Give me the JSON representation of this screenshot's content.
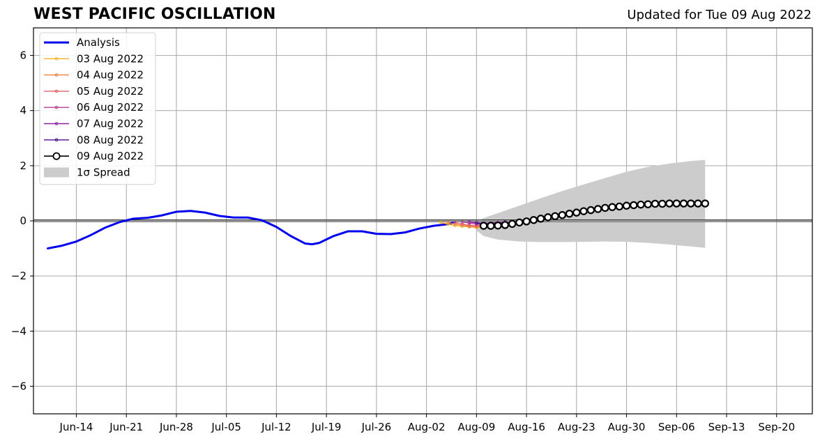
{
  "page": {
    "title": "WEST PACIFIC OSCILLATION",
    "subtitle": "Updated for Tue 09 Aug 2022"
  },
  "chart_data": {
    "type": "line",
    "title": "WEST PACIFIC OSCILLATION",
    "subtitle": "Updated for Tue 09 Aug 2022",
    "xlabel": "",
    "ylabel": "",
    "x_axis": {
      "type": "date",
      "range": [
        "2022-06-08",
        "2022-09-25"
      ],
      "ticks": [
        "2022-06-14",
        "2022-06-21",
        "2022-06-28",
        "2022-07-05",
        "2022-07-12",
        "2022-07-19",
        "2022-07-26",
        "2022-08-02",
        "2022-08-09",
        "2022-08-16",
        "2022-08-23",
        "2022-08-30",
        "2022-09-06",
        "2022-09-13",
        "2022-09-20"
      ],
      "tick_labels": [
        "Jun-14",
        "Jun-21",
        "Jun-28",
        "Jul-05",
        "Jul-12",
        "Jul-19",
        "Jul-26",
        "Aug-02",
        "Aug-09",
        "Aug-16",
        "Aug-23",
        "Aug-30",
        "Sep-06",
        "Sep-13",
        "Sep-20"
      ]
    },
    "y_axis": {
      "range": [
        -7,
        7
      ],
      "ticks": [
        -6,
        -4,
        -2,
        0,
        2,
        4,
        6
      ],
      "tick_labels": [
        "−6",
        "−4",
        "−2",
        "0",
        "2",
        "4",
        "6"
      ]
    },
    "grid": true,
    "legend_position": "top-left",
    "analysis": {
      "name": "Analysis",
      "color": "#0000ee",
      "points": [
        [
          "2022-06-10",
          -1.0
        ],
        [
          "2022-06-12",
          -0.9
        ],
        [
          "2022-06-14",
          -0.75
        ],
        [
          "2022-06-16",
          -0.52
        ],
        [
          "2022-06-18",
          -0.25
        ],
        [
          "2022-06-20",
          -0.05
        ],
        [
          "2022-06-22",
          0.08
        ],
        [
          "2022-06-24",
          0.11
        ],
        [
          "2022-06-26",
          0.2
        ],
        [
          "2022-06-28",
          0.33
        ],
        [
          "2022-06-30",
          0.36
        ],
        [
          "2022-07-02",
          0.3
        ],
        [
          "2022-07-04",
          0.18
        ],
        [
          "2022-07-06",
          0.12
        ],
        [
          "2022-07-08",
          0.12
        ],
        [
          "2022-07-10",
          0.02
        ],
        [
          "2022-07-12",
          -0.22
        ],
        [
          "2022-07-14",
          -0.55
        ],
        [
          "2022-07-16",
          -0.82
        ],
        [
          "2022-07-17",
          -0.85
        ],
        [
          "2022-07-18",
          -0.8
        ],
        [
          "2022-07-20",
          -0.55
        ],
        [
          "2022-07-22",
          -0.38
        ],
        [
          "2022-07-24",
          -0.38
        ],
        [
          "2022-07-26",
          -0.47
        ],
        [
          "2022-07-28",
          -0.48
        ],
        [
          "2022-07-30",
          -0.42
        ],
        [
          "2022-08-01",
          -0.28
        ],
        [
          "2022-08-03",
          -0.18
        ],
        [
          "2022-08-05",
          -0.12
        ],
        [
          "2022-08-06",
          -0.05
        ]
      ]
    },
    "series": [
      {
        "name": "03 Aug 2022",
        "color": "#f5b323",
        "points": [
          [
            "2022-08-04",
            -0.05
          ],
          [
            "2022-08-05",
            -0.12
          ],
          [
            "2022-08-06",
            -0.17
          ],
          [
            "2022-08-07",
            -0.2
          ],
          [
            "2022-08-08",
            -0.22
          ],
          [
            "2022-08-09",
            -0.24
          ],
          [
            "2022-08-10",
            -0.22
          ]
        ]
      },
      {
        "name": "04 Aug 2022",
        "color": "#f07f3f",
        "points": [
          [
            "2022-08-05",
            -0.06
          ],
          [
            "2022-08-06",
            -0.12
          ],
          [
            "2022-08-07",
            -0.16
          ],
          [
            "2022-08-08",
            -0.2
          ],
          [
            "2022-08-09",
            -0.22
          ],
          [
            "2022-08-10",
            -0.2
          ]
        ]
      },
      {
        "name": "05 Aug 2022",
        "color": "#df5f66",
        "points": [
          [
            "2022-08-06",
            -0.06
          ],
          [
            "2022-08-07",
            -0.12
          ],
          [
            "2022-08-08",
            -0.16
          ],
          [
            "2022-08-09",
            -0.18
          ],
          [
            "2022-08-10",
            -0.16
          ],
          [
            "2022-08-11",
            -0.12
          ]
        ]
      },
      {
        "name": "06 Aug 2022",
        "color": "#b73c8f",
        "points": [
          [
            "2022-08-07",
            -0.04
          ],
          [
            "2022-08-08",
            -0.08
          ],
          [
            "2022-08-09",
            -0.12
          ],
          [
            "2022-08-10",
            -0.12
          ],
          [
            "2022-08-11",
            -0.1
          ],
          [
            "2022-08-12",
            -0.08
          ]
        ]
      },
      {
        "name": "07 Aug 2022",
        "color": "#8c1fa6",
        "points": [
          [
            "2022-08-08",
            -0.04
          ],
          [
            "2022-08-09",
            -0.07
          ],
          [
            "2022-08-10",
            -0.09
          ],
          [
            "2022-08-11",
            -0.08
          ],
          [
            "2022-08-12",
            -0.06
          ],
          [
            "2022-08-13",
            -0.04
          ]
        ]
      },
      {
        "name": "08 Aug 2022",
        "color": "#4a0e8f",
        "points": [
          [
            "2022-08-09",
            -0.08
          ],
          [
            "2022-08-10",
            -0.12
          ],
          [
            "2022-08-11",
            -0.12
          ],
          [
            "2022-08-12",
            -0.1
          ],
          [
            "2022-08-13",
            -0.08
          ]
        ]
      },
      {
        "name": "09 Aug 2022",
        "color": "#000000",
        "marker": "open-circle",
        "points": [
          [
            "2022-08-10",
            -0.18
          ],
          [
            "2022-08-11",
            -0.18
          ],
          [
            "2022-08-12",
            -0.17
          ],
          [
            "2022-08-13",
            -0.15
          ],
          [
            "2022-08-14",
            -0.11
          ],
          [
            "2022-08-15",
            -0.06
          ],
          [
            "2022-08-16",
            -0.02
          ],
          [
            "2022-08-17",
            0.03
          ],
          [
            "2022-08-18",
            0.08
          ],
          [
            "2022-08-19",
            0.13
          ],
          [
            "2022-08-20",
            0.17
          ],
          [
            "2022-08-21",
            0.21
          ],
          [
            "2022-08-22",
            0.26
          ],
          [
            "2022-08-23",
            0.3
          ],
          [
            "2022-08-24",
            0.35
          ],
          [
            "2022-08-25",
            0.39
          ],
          [
            "2022-08-26",
            0.43
          ],
          [
            "2022-08-27",
            0.47
          ],
          [
            "2022-08-28",
            0.5
          ],
          [
            "2022-08-29",
            0.52
          ],
          [
            "2022-08-30",
            0.55
          ],
          [
            "2022-08-31",
            0.57
          ],
          [
            "2022-09-01",
            0.59
          ],
          [
            "2022-09-02",
            0.6
          ],
          [
            "2022-09-03",
            0.62
          ],
          [
            "2022-09-04",
            0.62
          ],
          [
            "2022-09-05",
            0.63
          ],
          [
            "2022-09-06",
            0.63
          ],
          [
            "2022-09-07",
            0.63
          ],
          [
            "2022-09-08",
            0.63
          ],
          [
            "2022-09-09",
            0.63
          ],
          [
            "2022-09-10",
            0.63
          ]
        ]
      }
    ],
    "spread": {
      "name": "1σ Spread",
      "color": "#cccccc",
      "points": [
        [
          "2022-08-09",
          -0.35,
          -0.05
        ],
        [
          "2022-08-10",
          -0.55,
          0.1
        ],
        [
          "2022-08-12",
          -0.68,
          0.28
        ],
        [
          "2022-08-15",
          -0.75,
          0.55
        ],
        [
          "2022-08-18",
          -0.77,
          0.82
        ],
        [
          "2022-08-21",
          -0.77,
          1.08
        ],
        [
          "2022-08-24",
          -0.76,
          1.32
        ],
        [
          "2022-08-27",
          -0.75,
          1.55
        ],
        [
          "2022-08-30",
          -0.76,
          1.78
        ],
        [
          "2022-09-02",
          -0.8,
          1.96
        ],
        [
          "2022-09-05",
          -0.86,
          2.08
        ],
        [
          "2022-09-08",
          -0.93,
          2.17
        ],
        [
          "2022-09-10",
          -0.98,
          2.21
        ]
      ]
    }
  }
}
